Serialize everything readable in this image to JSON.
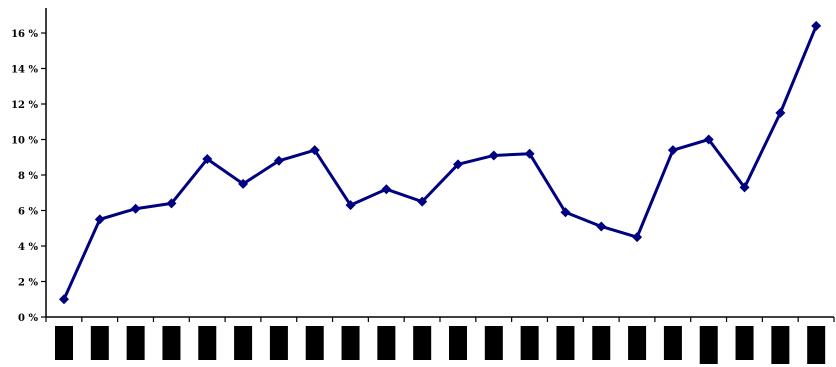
{
  "chart_data": {
    "type": "line",
    "title": "",
    "xlabel": "",
    "ylabel": "",
    "ylim": [
      0,
      16
    ],
    "y_ticks": [
      0,
      2,
      4,
      6,
      8,
      10,
      12,
      14,
      16
    ],
    "y_tick_labels": [
      "0 %",
      "2 %",
      "4 %",
      "6 %",
      "8 %",
      "10 %",
      "12 %",
      "14 %",
      "16 %"
    ],
    "x_tick_labels_redacted": true,
    "grid": false,
    "legend": "none",
    "series": [
      {
        "color": "#000080",
        "marker": "diamond",
        "values": [
          1.0,
          5.5,
          6.1,
          6.4,
          8.9,
          7.5,
          8.8,
          9.4,
          6.3,
          7.2,
          6.5,
          8.6,
          9.1,
          9.2,
          5.9,
          5.1,
          4.5,
          9.4,
          10.0,
          7.3,
          11.5,
          16.4
        ]
      }
    ],
    "axis_color": "#000000",
    "redaction_color": "#000000"
  }
}
